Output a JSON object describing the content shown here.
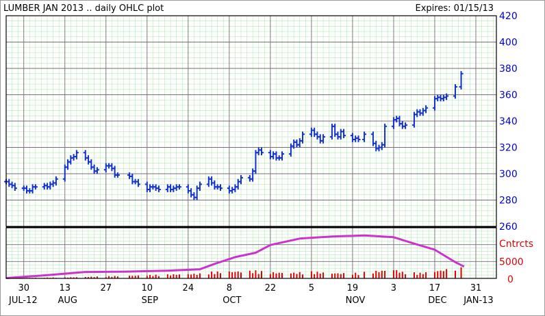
{
  "header": {
    "title": "LUMBER JAN 2013 .. daily OHLC plot",
    "expires": "Expires: 01/15/13"
  },
  "chart_data": [
    {
      "type": "ohlc",
      "title": "LUMBER JAN 2013 .. daily OHLC plot",
      "ylim": [
        260,
        420
      ],
      "y_ticks": [
        "420",
        "400",
        "380",
        "360",
        "340",
        "320",
        "300",
        "280",
        "260"
      ],
      "grid": true,
      "x_day_labels": [
        "30",
        "13",
        "27",
        "10",
        "24",
        "8",
        "22",
        "5",
        "19",
        "3",
        "17",
        "31"
      ],
      "x_month_labels": [
        "JUL-12",
        "AUG",
        "SEP",
        "OCT",
        "NOV",
        "DEC",
        "JAN-13"
      ],
      "x_range": [
        "2012-07-24",
        "2013-01-07"
      ],
      "x_ticks": [
        "2012-07-30",
        "2012-08-13",
        "2012-08-27",
        "2012-09-10",
        "2012-09-24",
        "2012-10-08",
        "2012-10-22",
        "2012-11-05",
        "2012-11-19",
        "2012-12-03",
        "2012-12-17",
        "2012-12-31"
      ],
      "series_color": "#1030d0",
      "close": [
        [
          "2012-07-24",
          294
        ],
        [
          "2012-07-25",
          292
        ],
        [
          "2012-07-26",
          291
        ],
        [
          "2012-07-27",
          289
        ],
        [
          "2012-07-30",
          289
        ],
        [
          "2012-07-31",
          287
        ],
        [
          "2012-08-01",
          287
        ],
        [
          "2012-08-02",
          290
        ],
        [
          "2012-08-03",
          290
        ],
        [
          "2012-08-06",
          291
        ],
        [
          "2012-08-07",
          290
        ],
        [
          "2012-08-08",
          292
        ],
        [
          "2012-08-09",
          293
        ],
        [
          "2012-08-10",
          296
        ],
        [
          "2012-08-13",
          305
        ],
        [
          "2012-08-14",
          309
        ],
        [
          "2012-08-15",
          312
        ],
        [
          "2012-08-16",
          313
        ],
        [
          "2012-08-17",
          316
        ],
        [
          "2012-08-20",
          312
        ],
        [
          "2012-08-21",
          309
        ],
        [
          "2012-08-22",
          305
        ],
        [
          "2012-08-23",
          302
        ],
        [
          "2012-08-24",
          303
        ],
        [
          "2012-08-27",
          306
        ],
        [
          "2012-08-28",
          306
        ],
        [
          "2012-08-29",
          304
        ],
        [
          "2012-08-30",
          299
        ],
        [
          "2012-08-31",
          299
        ],
        [
          "2012-09-04",
          298
        ],
        [
          "2012-09-05",
          294
        ],
        [
          "2012-09-06",
          294
        ],
        [
          "2012-09-07",
          292
        ],
        [
          "2012-09-10",
          288
        ],
        [
          "2012-09-11",
          290
        ],
        [
          "2012-09-12",
          290
        ],
        [
          "2012-09-13",
          289
        ],
        [
          "2012-09-14",
          288
        ],
        [
          "2012-09-17",
          290
        ],
        [
          "2012-09-18",
          288
        ],
        [
          "2012-09-19",
          289
        ],
        [
          "2012-09-20",
          290
        ],
        [
          "2012-09-21",
          290
        ],
        [
          "2012-09-24",
          287
        ],
        [
          "2012-09-25",
          284
        ],
        [
          "2012-09-26",
          282
        ],
        [
          "2012-09-27",
          289
        ],
        [
          "2012-09-28",
          292
        ],
        [
          "2012-10-01",
          296
        ],
        [
          "2012-10-02",
          293
        ],
        [
          "2012-10-03",
          290
        ],
        [
          "2012-10-04",
          290
        ],
        [
          "2012-10-05",
          289
        ],
        [
          "2012-10-08",
          287
        ],
        [
          "2012-10-09",
          288
        ],
        [
          "2012-10-10",
          290
        ],
        [
          "2012-10-11",
          294
        ],
        [
          "2012-10-12",
          297
        ],
        [
          "2012-10-15",
          296
        ],
        [
          "2012-10-16",
          302
        ],
        [
          "2012-10-17",
          316
        ],
        [
          "2012-10-18",
          318
        ],
        [
          "2012-10-19",
          316
        ],
        [
          "2012-10-22",
          313
        ],
        [
          "2012-10-23",
          315
        ],
        [
          "2012-10-24",
          312
        ],
        [
          "2012-10-25",
          312
        ],
        [
          "2012-10-26",
          315
        ],
        [
          "2012-10-29",
          321
        ],
        [
          "2012-10-30",
          324
        ],
        [
          "2012-10-31",
          322
        ],
        [
          "2012-11-01",
          325
        ],
        [
          "2012-11-02",
          330
        ],
        [
          "2012-11-05",
          333
        ],
        [
          "2012-11-06",
          330
        ],
        [
          "2012-11-07",
          328
        ],
        [
          "2012-11-08",
          325
        ],
        [
          "2012-11-09",
          328
        ],
        [
          "2012-11-12",
          336
        ],
        [
          "2012-11-13",
          330
        ],
        [
          "2012-11-14",
          328
        ],
        [
          "2012-11-15",
          332
        ],
        [
          "2012-11-16",
          329
        ],
        [
          "2012-11-19",
          326
        ],
        [
          "2012-11-20",
          327
        ],
        [
          "2012-11-21",
          326
        ],
        [
          "2012-11-23",
          330
        ],
        [
          "2012-11-26",
          323
        ],
        [
          "2012-11-27",
          319
        ],
        [
          "2012-11-28",
          320
        ],
        [
          "2012-11-29",
          322
        ],
        [
          "2012-11-30",
          336
        ],
        [
          "2012-12-03",
          341
        ],
        [
          "2012-12-04",
          342
        ],
        [
          "2012-12-05",
          338
        ],
        [
          "2012-12-06",
          336
        ],
        [
          "2012-12-07",
          337
        ],
        [
          "2012-12-10",
          345
        ],
        [
          "2012-12-11",
          347
        ],
        [
          "2012-12-12",
          346
        ],
        [
          "2012-12-13",
          348
        ],
        [
          "2012-12-14",
          350
        ],
        [
          "2012-12-17",
          357
        ],
        [
          "2012-12-18",
          358
        ],
        [
          "2012-12-19",
          357
        ],
        [
          "2012-12-20",
          358
        ],
        [
          "2012-12-21",
          359
        ],
        [
          "2012-12-24",
          366
        ],
        [
          "2012-12-26",
          376
        ]
      ],
      "range_hint": "high/low derived as close ± daily range"
    },
    {
      "type": "line+bar",
      "title": "",
      "ylim": [
        0,
        15000
      ],
      "y_ticks": [
        "5000",
        "0"
      ],
      "y_label": "Cntrcts",
      "open_interest_color": "#cc33cc",
      "volume_color": "#e00000",
      "open_interest": [
        [
          "2012-07-24",
          100
        ],
        [
          "2012-08-06",
          900
        ],
        [
          "2012-08-20",
          1900
        ],
        [
          "2012-09-03",
          2000
        ],
        [
          "2012-09-17",
          2300
        ],
        [
          "2012-09-28",
          2700
        ],
        [
          "2012-10-03",
          4300
        ],
        [
          "2012-10-10",
          6300
        ],
        [
          "2012-10-17",
          7600
        ],
        [
          "2012-10-22",
          9900
        ],
        [
          "2012-11-01",
          11800
        ],
        [
          "2012-11-12",
          12400
        ],
        [
          "2012-11-23",
          12700
        ],
        [
          "2012-12-03",
          12200
        ],
        [
          "2012-12-10",
          10300
        ],
        [
          "2012-12-17",
          8500
        ],
        [
          "2012-12-24",
          4800
        ],
        [
          "2012-12-27",
          3500
        ]
      ],
      "volume": [
        [
          "2012-07-24",
          100
        ],
        [
          "2012-08-13",
          300
        ],
        [
          "2012-09-28",
          1500
        ],
        [
          "2012-10-01",
          2000
        ],
        [
          "2012-10-17",
          2400
        ],
        [
          "2012-10-22",
          1900
        ],
        [
          "2012-10-30",
          1800
        ],
        [
          "2012-11-05",
          2100
        ],
        [
          "2012-11-12",
          1700
        ],
        [
          "2012-11-19",
          1600
        ],
        [
          "2012-11-28",
          2400
        ],
        [
          "2012-12-03",
          2900
        ],
        [
          "2012-12-06",
          2000
        ],
        [
          "2012-12-12",
          1700
        ],
        [
          "2012-12-17",
          2300
        ],
        [
          "2012-12-24",
          3300
        ]
      ]
    }
  ],
  "styles": {
    "grid_minor": "#b8e8b8",
    "grid_major": "#707070",
    "panel_bg": "#ffffff"
  }
}
